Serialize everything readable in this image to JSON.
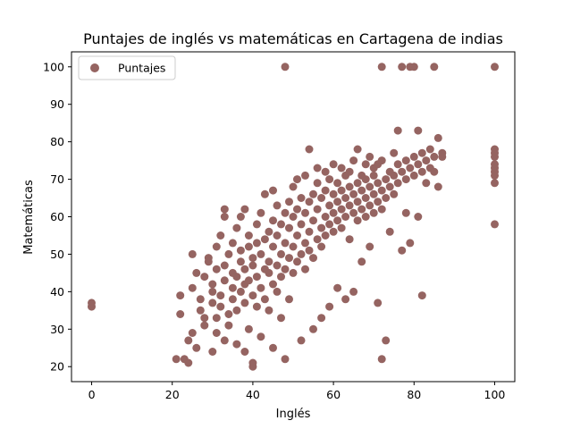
{
  "chart_data": {
    "type": "scatter",
    "title": "Puntajes de inglés vs matemáticas en Cartagena de indias",
    "xlabel": "Inglés",
    "ylabel": "Matemáticas",
    "xlim": [
      -5,
      105
    ],
    "ylim": [
      16,
      104
    ],
    "xticks": [
      0,
      20,
      40,
      60,
      80,
      100
    ],
    "yticks": [
      20,
      30,
      40,
      50,
      60,
      70,
      80,
      90,
      100
    ],
    "grid": false,
    "legend": {
      "position": "top-left"
    },
    "series": [
      {
        "name": "Puntajes",
        "color": "#956461",
        "points": [
          [
            0,
            36
          ],
          [
            0,
            37
          ],
          [
            21,
            22
          ],
          [
            22,
            39
          ],
          [
            22,
            34
          ],
          [
            23,
            22
          ],
          [
            24,
            21
          ],
          [
            24,
            27
          ],
          [
            25,
            29
          ],
          [
            25,
            41
          ],
          [
            25,
            50
          ],
          [
            26,
            45
          ],
          [
            26,
            25
          ],
          [
            27,
            35
          ],
          [
            27,
            38
          ],
          [
            28,
            31
          ],
          [
            28,
            33
          ],
          [
            28,
            44
          ],
          [
            29,
            49
          ],
          [
            29,
            48
          ],
          [
            30,
            37
          ],
          [
            30,
            40
          ],
          [
            30,
            42
          ],
          [
            30,
            24
          ],
          [
            31,
            52
          ],
          [
            31,
            46
          ],
          [
            31,
            33
          ],
          [
            31,
            29
          ],
          [
            32,
            55
          ],
          [
            32,
            36
          ],
          [
            32,
            39
          ],
          [
            33,
            43
          ],
          [
            33,
            47
          ],
          [
            33,
            27
          ],
          [
            33,
            62
          ],
          [
            33,
            60
          ],
          [
            34,
            34
          ],
          [
            34,
            31
          ],
          [
            34,
            50
          ],
          [
            35,
            41
          ],
          [
            35,
            45
          ],
          [
            35,
            53
          ],
          [
            35,
            38
          ],
          [
            36,
            57
          ],
          [
            36,
            44
          ],
          [
            36,
            35
          ],
          [
            36,
            26
          ],
          [
            37,
            48
          ],
          [
            37,
            40
          ],
          [
            37,
            51
          ],
          [
            37,
            60
          ],
          [
            38,
            37
          ],
          [
            38,
            42
          ],
          [
            38,
            46
          ],
          [
            38,
            62
          ],
          [
            38,
            24
          ],
          [
            39,
            55
          ],
          [
            39,
            52
          ],
          [
            39,
            43
          ],
          [
            39,
            30
          ],
          [
            40,
            39
          ],
          [
            40,
            47
          ],
          [
            40,
            49
          ],
          [
            40,
            20
          ],
          [
            40,
            21
          ],
          [
            41,
            58
          ],
          [
            41,
            44
          ],
          [
            41,
            36
          ],
          [
            41,
            53
          ],
          [
            42,
            50
          ],
          [
            42,
            41
          ],
          [
            42,
            61
          ],
          [
            42,
            28
          ],
          [
            43,
            46
          ],
          [
            43,
            54
          ],
          [
            43,
            38
          ],
          [
            43,
            66
          ],
          [
            44,
            45
          ],
          [
            44,
            56
          ],
          [
            44,
            48
          ],
          [
            44,
            35
          ],
          [
            45,
            52
          ],
          [
            45,
            42
          ],
          [
            45,
            59
          ],
          [
            45,
            67
          ],
          [
            45,
            25
          ],
          [
            46,
            47
          ],
          [
            46,
            55
          ],
          [
            46,
            40
          ],
          [
            46,
            63
          ],
          [
            47,
            50
          ],
          [
            47,
            58
          ],
          [
            47,
            44
          ],
          [
            47,
            33
          ],
          [
            48,
            53
          ],
          [
            48,
            46
          ],
          [
            48,
            61
          ],
          [
            48,
            100
          ],
          [
            48,
            22
          ],
          [
            49,
            57
          ],
          [
            49,
            49
          ],
          [
            49,
            64
          ],
          [
            49,
            38
          ],
          [
            50,
            52
          ],
          [
            50,
            60
          ],
          [
            50,
            45
          ],
          [
            50,
            68
          ],
          [
            51,
            55
          ],
          [
            51,
            48
          ],
          [
            51,
            62
          ],
          [
            51,
            70
          ],
          [
            52,
            58
          ],
          [
            52,
            50
          ],
          [
            52,
            65
          ],
          [
            52,
            27
          ],
          [
            53,
            53
          ],
          [
            53,
            61
          ],
          [
            53,
            46
          ],
          [
            53,
            71
          ],
          [
            54,
            56
          ],
          [
            54,
            64
          ],
          [
            54,
            51
          ],
          [
            54,
            78
          ],
          [
            55,
            59
          ],
          [
            55,
            66
          ],
          [
            55,
            49
          ],
          [
            55,
            30
          ],
          [
            56,
            62
          ],
          [
            56,
            54
          ],
          [
            56,
            69
          ],
          [
            56,
            73
          ],
          [
            57,
            57
          ],
          [
            57,
            65
          ],
          [
            57,
            52
          ],
          [
            57,
            33
          ],
          [
            58,
            60
          ],
          [
            58,
            67
          ],
          [
            58,
            55
          ],
          [
            58,
            72
          ],
          [
            59,
            63
          ],
          [
            59,
            58
          ],
          [
            59,
            70
          ],
          [
            59,
            36
          ],
          [
            60,
            61
          ],
          [
            60,
            66
          ],
          [
            60,
            56
          ],
          [
            60,
            74
          ],
          [
            61,
            64
          ],
          [
            61,
            59
          ],
          [
            61,
            69
          ],
          [
            61,
            41
          ],
          [
            62,
            62
          ],
          [
            62,
            67
          ],
          [
            62,
            57
          ],
          [
            62,
            73
          ],
          [
            63,
            65
          ],
          [
            63,
            60
          ],
          [
            63,
            71
          ],
          [
            63,
            38
          ],
          [
            64,
            63
          ],
          [
            64,
            68
          ],
          [
            64,
            54
          ],
          [
            64,
            72
          ],
          [
            65,
            66
          ],
          [
            65,
            61
          ],
          [
            65,
            75
          ],
          [
            65,
            40
          ],
          [
            66,
            64
          ],
          [
            66,
            69
          ],
          [
            66,
            59
          ],
          [
            66,
            78
          ],
          [
            67,
            67
          ],
          [
            67,
            62
          ],
          [
            67,
            71
          ],
          [
            67,
            48
          ],
          [
            68,
            65
          ],
          [
            68,
            70
          ],
          [
            68,
            60
          ],
          [
            68,
            74
          ],
          [
            69,
            68
          ],
          [
            69,
            63
          ],
          [
            69,
            76
          ],
          [
            69,
            52
          ],
          [
            70,
            66
          ],
          [
            70,
            71
          ],
          [
            70,
            61
          ],
          [
            70,
            73
          ],
          [
            71,
            69
          ],
          [
            71,
            64
          ],
          [
            71,
            74
          ],
          [
            71,
            37
          ],
          [
            72,
            100
          ],
          [
            72,
            22
          ],
          [
            72,
            67
          ],
          [
            72,
            62
          ],
          [
            72,
            75
          ],
          [
            73,
            27
          ],
          [
            73,
            70
          ],
          [
            73,
            65
          ],
          [
            74,
            68
          ],
          [
            74,
            72
          ],
          [
            74,
            56
          ],
          [
            75,
            71
          ],
          [
            75,
            66
          ],
          [
            75,
            77
          ],
          [
            76,
            69
          ],
          [
            76,
            83
          ],
          [
            76,
            74
          ],
          [
            77,
            100
          ],
          [
            77,
            72
          ],
          [
            77,
            51
          ],
          [
            78,
            70
          ],
          [
            78,
            75
          ],
          [
            78,
            61
          ],
          [
            79,
            100
          ],
          [
            79,
            73
          ],
          [
            79,
            53
          ],
          [
            80,
            100
          ],
          [
            80,
            71
          ],
          [
            80,
            76
          ],
          [
            81,
            74
          ],
          [
            81,
            83
          ],
          [
            81,
            60
          ],
          [
            82,
            39
          ],
          [
            82,
            72
          ],
          [
            82,
            77
          ],
          [
            83,
            75
          ],
          [
            83,
            69
          ],
          [
            84,
            73
          ],
          [
            84,
            78
          ],
          [
            85,
            100
          ],
          [
            85,
            76
          ],
          [
            85,
            72
          ],
          [
            86,
            81
          ],
          [
            86,
            68
          ],
          [
            87,
            77
          ],
          [
            87,
            76
          ],
          [
            100,
            100
          ],
          [
            100,
            78
          ],
          [
            100,
            77
          ],
          [
            100,
            76
          ],
          [
            100,
            74
          ],
          [
            100,
            73
          ],
          [
            100,
            72
          ],
          [
            100,
            71
          ],
          [
            100,
            69
          ],
          [
            100,
            58
          ]
        ]
      }
    ]
  }
}
